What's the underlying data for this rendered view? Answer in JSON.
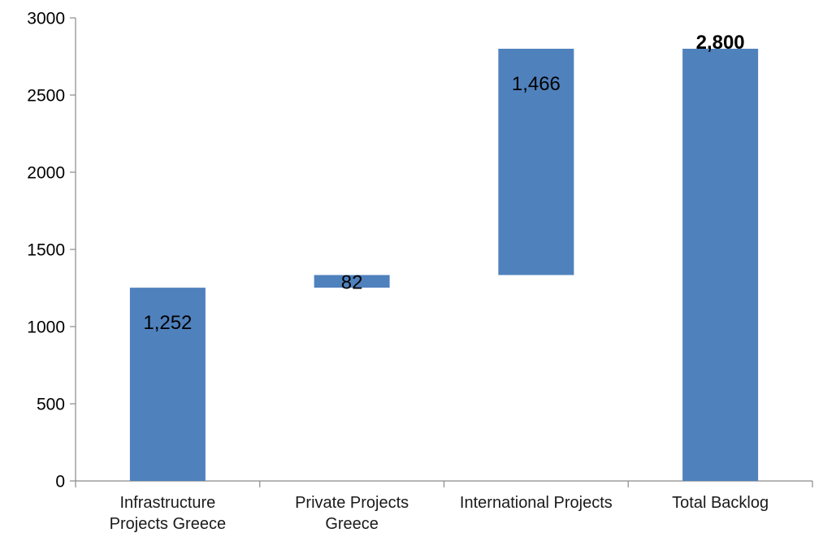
{
  "chart_data": {
    "type": "bar",
    "subtype": "waterfall",
    "title": "",
    "xlabel": "",
    "ylabel": "",
    "ylim": [
      0,
      3000
    ],
    "y_ticks": [
      0,
      500,
      1000,
      1500,
      2000,
      2500,
      3000
    ],
    "grid": false,
    "bar_color": "#4F81BD",
    "categories": [
      [
        "Infrastructure",
        "Projects Greece"
      ],
      [
        "Private Projects",
        "Greece"
      ],
      [
        "International Projects"
      ],
      [
        "Total Backlog"
      ]
    ],
    "values": [
      1252,
      82,
      1466,
      2800
    ],
    "bar_base": [
      0,
      1252,
      1334,
      0
    ],
    "data_labels": [
      "1,252",
      "82",
      "1,466",
      "2,800"
    ],
    "data_label_bold": [
      false,
      false,
      false,
      true
    ]
  }
}
